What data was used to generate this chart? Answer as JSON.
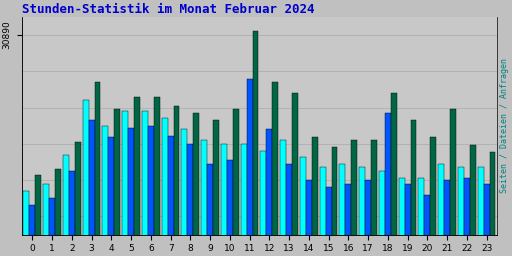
{
  "title": "Stunden-Statistik im Monat Februar 2024",
  "title_color": "#0000cc",
  "title_fontsize": 9,
  "ylabel_right": "Seiten / Dateien / Anfragen",
  "ylabel_right_color": "#008080",
  "ytick_label": "30890",
  "background_color": "#c0c0c0",
  "plot_bg_color": "#c8c8c8",
  "bar_colors_cyan": "#00ffff",
  "bar_colors_blue": "#0055ff",
  "bar_colors_green": "#006644",
  "bar_edge_color": "#000000",
  "hours": [
    0,
    1,
    2,
    3,
    4,
    5,
    6,
    7,
    8,
    9,
    10,
    11,
    12,
    13,
    14,
    15,
    16,
    17,
    18,
    19,
    20,
    21,
    22,
    23
  ],
  "cyan_vals": [
    620,
    640,
    720,
    870,
    800,
    840,
    840,
    820,
    790,
    760,
    750,
    750,
    730,
    760,
    715,
    685,
    695,
    685,
    675,
    655,
    655,
    695,
    685,
    685
  ],
  "blue_vals": [
    580,
    600,
    675,
    815,
    770,
    795,
    800,
    772,
    750,
    695,
    705,
    930,
    790,
    695,
    650,
    630,
    640,
    650,
    835,
    640,
    610,
    650,
    655,
    640
  ],
  "green_vals": [
    665,
    680,
    755,
    920,
    845,
    880,
    880,
    855,
    835,
    815,
    845,
    1060,
    920,
    890,
    770,
    740,
    760,
    760,
    890,
    815,
    770,
    845,
    748,
    727
  ],
  "ylim_min": 500,
  "ylim_max": 1100,
  "ytick_pos": 1050,
  "grid_vals": [
    550,
    650,
    750,
    850,
    950,
    1050
  ],
  "grid_color": "#aaaaaa"
}
